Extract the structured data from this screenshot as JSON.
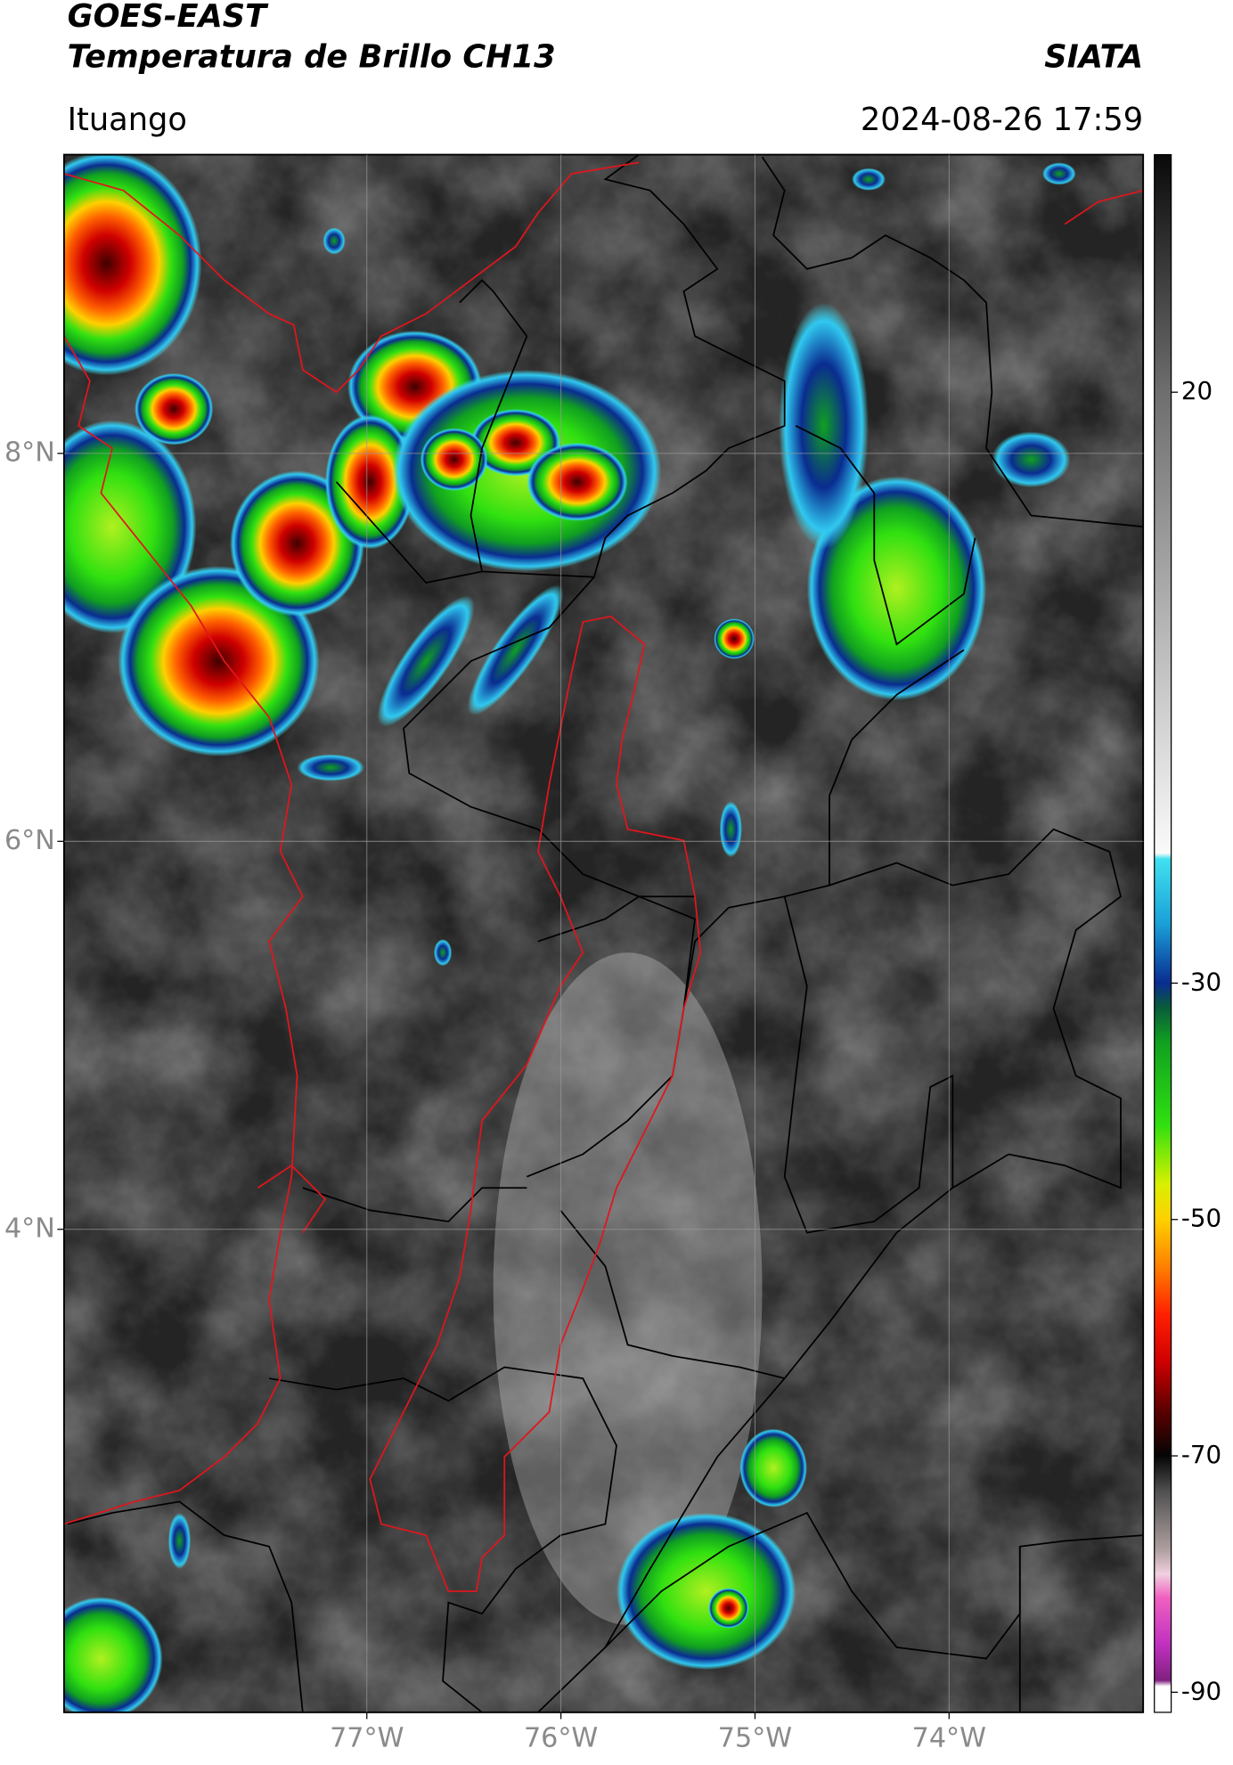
{
  "header": {
    "title": "GOES-EAST",
    "subtitle": "Temperatura de Brillo CH13",
    "source": "SIATA",
    "region": "Ituango",
    "datetime": "2024-08-26 17:59"
  },
  "map": {
    "xlim": [
      -78.56,
      -73.0
    ],
    "ylim": [
      1.51,
      9.54
    ],
    "xticks": [
      {
        "value": -77,
        "label": "77°W"
      },
      {
        "value": -76,
        "label": "76°W"
      },
      {
        "value": -75,
        "label": "75°W"
      },
      {
        "value": -74,
        "label": "74°W"
      }
    ],
    "yticks": [
      {
        "value": 8,
        "label": "8°N"
      },
      {
        "value": 6,
        "label": "6°N"
      },
      {
        "value": 4,
        "label": "4°N"
      }
    ],
    "grid": true
  },
  "colorbar": {
    "lim": [
      -91.7,
      40.1
    ],
    "ticks": [
      20,
      -30,
      -50,
      -70,
      -90
    ],
    "colormap": [
      {
        "value": 40,
        "color": "#0a0a0a"
      },
      {
        "value": 20,
        "color": "#6e6e6e"
      },
      {
        "value": -19,
        "color": "#fafafa"
      },
      {
        "value": -19.5,
        "color": "#40e0f0"
      },
      {
        "value": -25,
        "color": "#1aa0d8"
      },
      {
        "value": -30,
        "color": "#0a2c90"
      },
      {
        "value": -32,
        "color": "#0a5a3a"
      },
      {
        "value": -35,
        "color": "#10a020"
      },
      {
        "value": -42,
        "color": "#30e010"
      },
      {
        "value": -47,
        "color": "#d8f000"
      },
      {
        "value": -50,
        "color": "#ffd000"
      },
      {
        "value": -54,
        "color": "#ff8000"
      },
      {
        "value": -58,
        "color": "#ff2000"
      },
      {
        "value": -62,
        "color": "#d00000"
      },
      {
        "value": -66,
        "color": "#600000"
      },
      {
        "value": -70,
        "color": "#050505"
      },
      {
        "value": -73,
        "color": "#505050"
      },
      {
        "value": -78,
        "color": "#b0a0a0"
      },
      {
        "value": -80,
        "color": "#f0d0e0"
      },
      {
        "value": -82,
        "color": "#f060c0"
      },
      {
        "value": -86,
        "color": "#c030c0"
      },
      {
        "value": -89,
        "color": "#802080"
      },
      {
        "value": -89.5,
        "color": "#ffffff"
      },
      {
        "value": -91.7,
        "color": "#ffffff"
      }
    ]
  }
}
